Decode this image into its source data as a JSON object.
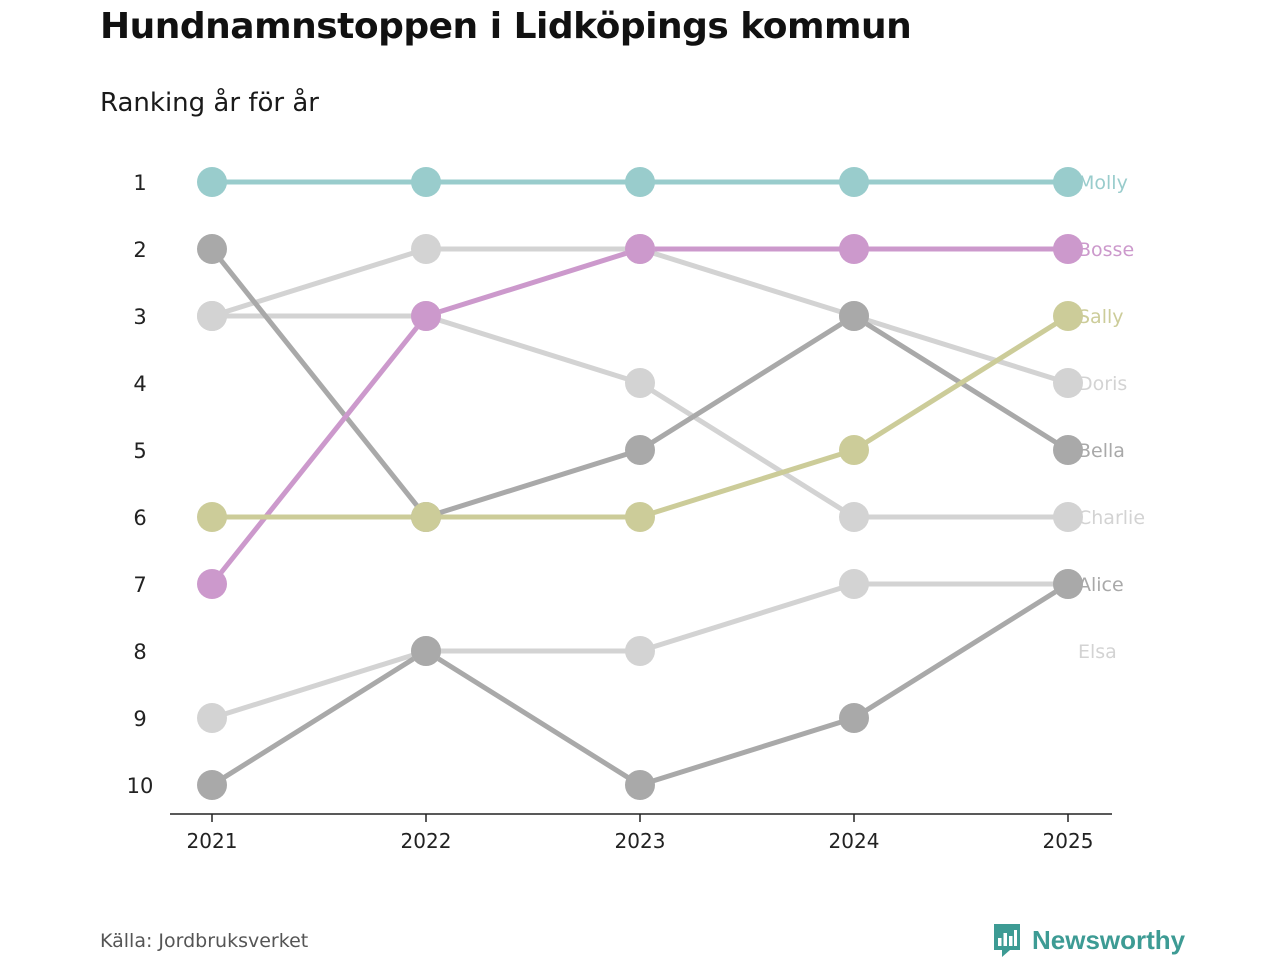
{
  "header": {
    "title": "Hundnamnstoppen i Lidköpings kommun",
    "subtitle": "Ranking år för år"
  },
  "footer": {
    "source": "Källa: Jordbruksverket",
    "brand": "Newsworthy",
    "brand_icon": "newsworthy-logo-icon"
  },
  "chart_data": {
    "type": "line",
    "subtype": "bump",
    "title": "Hundnamnstoppen i Lidköpings kommun",
    "subtitle": "Ranking år för år",
    "xlabel": "",
    "ylabel": "",
    "x": [
      "2021",
      "2022",
      "2023",
      "2024",
      "2025"
    ],
    "y_ticks": [
      "1",
      "2",
      "3",
      "4",
      "5",
      "6",
      "7",
      "8",
      "9",
      "10"
    ],
    "ylim": [
      1,
      10
    ],
    "y_inverted": true,
    "series": [
      {
        "name": "Doris",
        "color": "#d3d3d3",
        "values": [
          3,
          2,
          2,
          3,
          4
        ]
      },
      {
        "name": "Charlie",
        "color": "#d3d3d3",
        "values": [
          3,
          3,
          4,
          6,
          6
        ]
      },
      {
        "name": "Alice",
        "color": "#d3d3d3",
        "values": [
          9,
          8,
          8,
          7,
          7
        ]
      },
      {
        "name": "Elsa",
        "color": "#d3d3d3",
        "values": [
          null,
          null,
          null,
          null,
          null
        ]
      },
      {
        "name": "Bella",
        "color": "#a9a9a9",
        "values": [
          2,
          6,
          5,
          3,
          5
        ]
      },
      {
        "name": "Bosse",
        "color": "#cc99cc",
        "values": [
          7,
          3,
          2,
          2,
          2
        ]
      },
      {
        "name": "Sally",
        "color": "#cccc99",
        "values": [
          6,
          6,
          6,
          5,
          3
        ]
      },
      {
        "name": "Molly",
        "color": "#99cccc",
        "values": [
          1,
          1,
          1,
          1,
          1
        ]
      }
    ],
    "extra_series": [
      {
        "name": "",
        "color": "#a9a9a9",
        "values": [
          10,
          8,
          10,
          9,
          7
        ]
      }
    ],
    "end_labels": [
      {
        "text": "Molly",
        "rank": 1,
        "color": "#99cccc"
      },
      {
        "text": "Bosse",
        "rank": 2,
        "color": "#cc99cc"
      },
      {
        "text": "Sally",
        "rank": 3,
        "color": "#cccc99"
      },
      {
        "text": "Doris",
        "rank": 4,
        "color": "#d3d3d3"
      },
      {
        "text": "Bella",
        "rank": 5,
        "color": "#a9a9a9"
      },
      {
        "text": "Charlie",
        "rank": 6,
        "color": "#d3d3d3"
      },
      {
        "text": "Alice",
        "rank": 7,
        "color": "#a9a9a9"
      },
      {
        "text": "Elsa",
        "rank": 8,
        "color": "#d3d3d3"
      }
    ]
  }
}
